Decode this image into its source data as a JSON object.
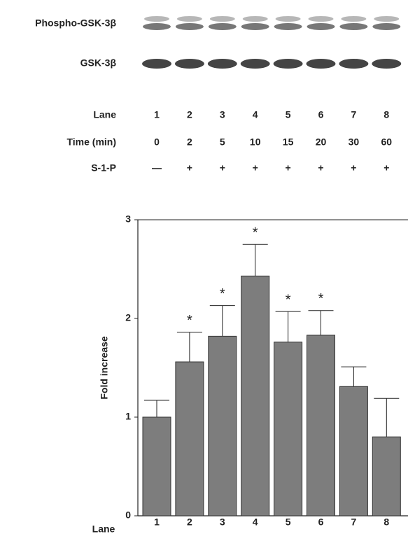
{
  "blot": {
    "row_labels": [
      "Phospho-GSK-3β",
      "GSK-3β"
    ],
    "conditions": [
      {
        "label": "Lane",
        "cells": [
          "1",
          "2",
          "3",
          "4",
          "5",
          "6",
          "7",
          "8"
        ]
      },
      {
        "label": "Time (min)",
        "cells": [
          "0",
          "2",
          "5",
          "10",
          "15",
          "20",
          "30",
          "60"
        ]
      },
      {
        "label": "S-1-P",
        "cells": [
          "—",
          "+",
          "+",
          "+",
          "+",
          "+",
          "+",
          "+"
        ]
      }
    ]
  },
  "chart_data": {
    "type": "bar",
    "x_label": "Lane",
    "y_label": "Fold increase",
    "categories": [
      "1",
      "2",
      "3",
      "4",
      "5",
      "6",
      "7",
      "8"
    ],
    "values": [
      1.0,
      1.56,
      1.82,
      2.43,
      1.76,
      1.83,
      1.31,
      0.8
    ],
    "errors": [
      0.17,
      0.3,
      0.31,
      0.32,
      0.31,
      0.25,
      0.2,
      0.39
    ],
    "markers": [
      null,
      "*",
      "*",
      "*",
      "*",
      "*",
      null,
      null
    ],
    "color": "#7d7d7d",
    "ylim": [
      0,
      3
    ],
    "yticks": [
      0,
      1,
      2,
      3
    ]
  }
}
